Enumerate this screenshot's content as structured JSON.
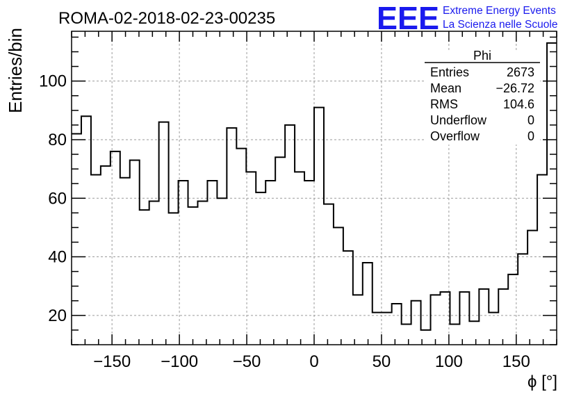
{
  "chart_data": {
    "type": "bar",
    "title": "ROMA-02-2018-02-23-00235",
    "xlabel": "ϕ [°]",
    "ylabel": "Entries/bin",
    "xlim": [
      -180,
      180
    ],
    "ylim": [
      10,
      117
    ],
    "grid": true,
    "bin_edges_start": -180,
    "bin_width": 7.2,
    "values": [
      82,
      88,
      68,
      71,
      76,
      67,
      73,
      56,
      59,
      86,
      55,
      66,
      57,
      59,
      66,
      60,
      84,
      77,
      69,
      62,
      66,
      74,
      85,
      69,
      66,
      91,
      58,
      50,
      42,
      27,
      38,
      21,
      21,
      24,
      17,
      25,
      15,
      27,
      28,
      17,
      28,
      18,
      29,
      21,
      29,
      34,
      41,
      49,
      68,
      113
    ],
    "x_ticks": [
      "−150",
      "−100",
      "−50",
      "0",
      "50",
      "100",
      "150"
    ],
    "x_tick_values": [
      -150,
      -100,
      -50,
      0,
      50,
      100,
      150
    ],
    "y_ticks": [
      "20",
      "40",
      "60",
      "80",
      "100"
    ],
    "y_tick_values": [
      20,
      40,
      60,
      80,
      100
    ],
    "stats": {
      "name": "Phi",
      "rows": [
        {
          "label": "Entries",
          "value": "2673"
        },
        {
          "label": "Mean",
          "value": "−26.72"
        },
        {
          "label": "RMS",
          "value": "104.6"
        },
        {
          "label": "Underflow",
          "value": "0"
        },
        {
          "label": "Overflow",
          "value": "0"
        }
      ]
    }
  },
  "logo": {
    "mark": "EEE",
    "line1": "Extreme Energy Events",
    "line2": "La Scienza nelle Scuole",
    "color": "#1a1aee"
  },
  "colors": {
    "histogram": "#000000",
    "grid": "#9a9a9a"
  }
}
